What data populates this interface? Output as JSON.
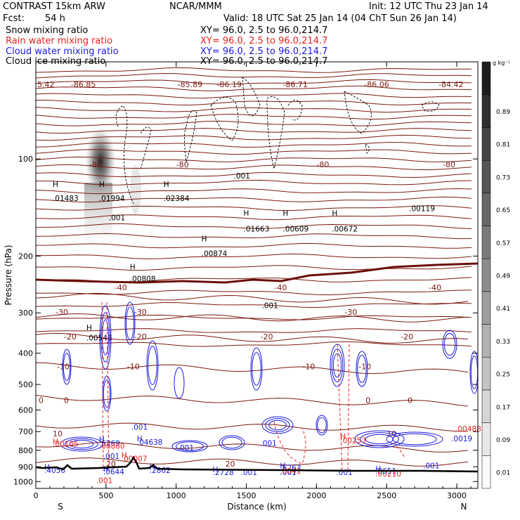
{
  "header": {
    "model": "CONTRAST 15km ARW",
    "org": "NCAR/MMM",
    "init": "Init: 12 UTC Thu 23 Jan 14",
    "fcst_label": "Fcst:",
    "fcst_value": "54 h",
    "valid": "Valid: 18 UTC Sat 25 Jan 14 (04 ChT Sun 26 Jan 14)",
    "fields": [
      {
        "name": "Snow mixing ratio",
        "xy": "XY=  96.0,  2.5 to  96.0,214.7",
        "color": "#000000"
      },
      {
        "name": "Rain water mixing ratio",
        "xy": "XY=  96.0,  2.5 to  96.0,214.7",
        "color": "#e8231f"
      },
      {
        "name": "Cloud water mixing ratio",
        "xy": "XY=  96.0,  2.5 to  96.0,214.7",
        "color": "#1a1adc"
      },
      {
        "name": "Cloud ice mixing ratio",
        "xy": "XY=  96.0,  2.5 to  96.0,214.7",
        "color": "#000000"
      }
    ]
  },
  "chart_data": {
    "type": "heatmap",
    "xlabel": "Distance (km)",
    "ylabel": "Pressure (hPa)",
    "xlim": [
      0,
      3150
    ],
    "ylim": [
      1050,
      50
    ],
    "y_scale": "log",
    "x_ticks": [
      0,
      500,
      1000,
      1500,
      2000,
      2500,
      3000
    ],
    "y_ticks": [
      100,
      200,
      300,
      400,
      500,
      600,
      700,
      800,
      900,
      1000
    ],
    "x_end_labels": {
      "left": "S",
      "right": "N"
    },
    "colorbar": {
      "unit": "g kg⁻¹",
      "levels": [
        "0.01",
        "0.09",
        "0.17",
        "0.25",
        "0.33",
        "0.41",
        "0.49",
        "0.57",
        "0.65",
        "0.73",
        "0.81",
        "0.89"
      ]
    },
    "temperature_isotherms": [
      {
        "label": "-80",
        "p": 104
      },
      {
        "label": "-40",
        "p": 250
      },
      {
        "label": "-30",
        "p": 298
      },
      {
        "label": "-20",
        "p": 355
      },
      {
        "label": "-10",
        "p": 440
      },
      {
        "label": "0",
        "p": 560
      },
      {
        "label": "10",
        "p": 710
      },
      {
        "label": "20",
        "p": 880
      }
    ],
    "extrema_labels": [
      {
        "text": "H",
        "x": 160,
        "p": 122
      },
      {
        "text": ".01483",
        "x": 160,
        "p": 135
      },
      {
        "text": "H",
        "x": 490,
        "p": 122
      },
      {
        "text": ".01994",
        "x": 490,
        "p": 135
      },
      {
        "text": "H",
        "x": 950,
        "p": 122
      },
      {
        "text": ".02384",
        "x": 950,
        "p": 135
      },
      {
        "text": "H",
        "x": 1520,
        "p": 150
      },
      {
        "text": ".01663",
        "x": 1520,
        "p": 168
      },
      {
        "text": "H",
        "x": 1800,
        "p": 150
      },
      {
        "text": ".00609",
        "x": 1800,
        "p": 168
      },
      {
        "text": "H",
        "x": 2150,
        "p": 150
      },
      {
        "text": ".00672",
        "x": 2150,
        "p": 168
      },
      {
        "text": ".00119",
        "x": 2700,
        "p": 145
      },
      {
        "text": "H",
        "x": 710,
        "p": 220
      },
      {
        "text": ".00808",
        "x": 710,
        "p": 240
      },
      {
        "text": "H",
        "x": 1220,
        "p": 180
      },
      {
        "text": ".00874",
        "x": 1220,
        "p": 200
      },
      {
        "text": "H",
        "x": 400,
        "p": 340
      },
      {
        "text": ".00543",
        "x": 400,
        "p": 365
      },
      {
        "text": ".001",
        "x": 560,
        "p": 155
      },
      {
        "text": ".001",
        "x": 1450,
        "p": 115
      },
      {
        "text": ".001",
        "x": 1650,
        "p": 290
      }
    ],
    "top_values": [
      {
        "text": "5.42",
        "x": 0
      },
      {
        "text": "-86.85",
        "x": 240
      },
      {
        "text": "-85.89",
        "x": 1000
      },
      {
        "text": "-86.19",
        "x": 1280
      },
      {
        "text": "-86.71",
        "x": 1750
      },
      {
        "text": "-86.06",
        "x": 2330
      },
      {
        "text": "-84.42",
        "x": 2860
      }
    ],
    "cloud_water_labels": [
      {
        "text": "H",
        "x": 490,
        "p": 755
      },
      {
        "text": ".6269",
        "x": 490,
        "p": 775
      },
      {
        "text": ".001",
        "x": 720,
        "p": 690
      },
      {
        "text": "H",
        "x": 760,
        "p": 750
      },
      {
        "text": ".04638",
        "x": 760,
        "p": 770
      },
      {
        "text": ".001",
        "x": 1050,
        "p": 800
      },
      {
        "text": ".001",
        "x": 1640,
        "p": 775
      },
      {
        "text": "H",
        "x": 1780,
        "p": 910
      },
      {
        "text": ".6263",
        "x": 1780,
        "p": 925
      },
      {
        "text": ".001",
        "x": 1500,
        "p": 955
      },
      {
        "text": ".001",
        "x": 1780,
        "p": 955
      },
      {
        "text": ".001",
        "x": 2180,
        "p": 955
      },
      {
        "text": "H",
        "x": 2460,
        "p": 930
      },
      {
        "text": ".0651",
        "x": 2460,
        "p": 945
      },
      {
        "text": ".001",
        "x": 2800,
        "p": 910
      },
      {
        "text": "H",
        "x": 100,
        "p": 920
      },
      {
        "text": ".4056",
        "x": 100,
        "p": 940
      },
      {
        "text": "H",
        "x": 520,
        "p": 930
      },
      {
        "text": ".0644",
        "x": 520,
        "p": 950
      },
      {
        "text": "H",
        "x": 850,
        "p": 920
      },
      {
        "text": ".2862",
        "x": 850,
        "p": 940
      },
      {
        "text": "H",
        "x": 1300,
        "p": 935
      },
      {
        "text": ".2728",
        "x": 1300,
        "p": 955
      },
      {
        "text": ".001",
        "x": 520,
        "p": 850
      },
      {
        "text": ".0019",
        "x": 3000,
        "p": 750
      }
    ],
    "rain_labels": [
      {
        "text": "H",
        "x": 160,
        "p": 765
      },
      {
        "text": ".00105",
        "x": 160,
        "p": 780
      },
      {
        "text": ".00860",
        "x": 490,
        "p": 790
      },
      {
        "text": "H",
        "x": 650,
        "p": 845
      },
      {
        "text": ".00007",
        "x": 650,
        "p": 865
      },
      {
        "text": ".0041",
        "x": 1780,
        "p": 945
      },
      {
        "text": ".00210",
        "x": 2460,
        "p": 965
      },
      {
        "text": ".001",
        "x": 470,
        "p": 1010
      },
      {
        "text": "H",
        "x": 2210,
        "p": 740
      },
      {
        "text": ".00253",
        "x": 2210,
        "p": 760
      },
      {
        "text": ".00488",
        "x": 3030,
        "p": 700
      }
    ]
  }
}
